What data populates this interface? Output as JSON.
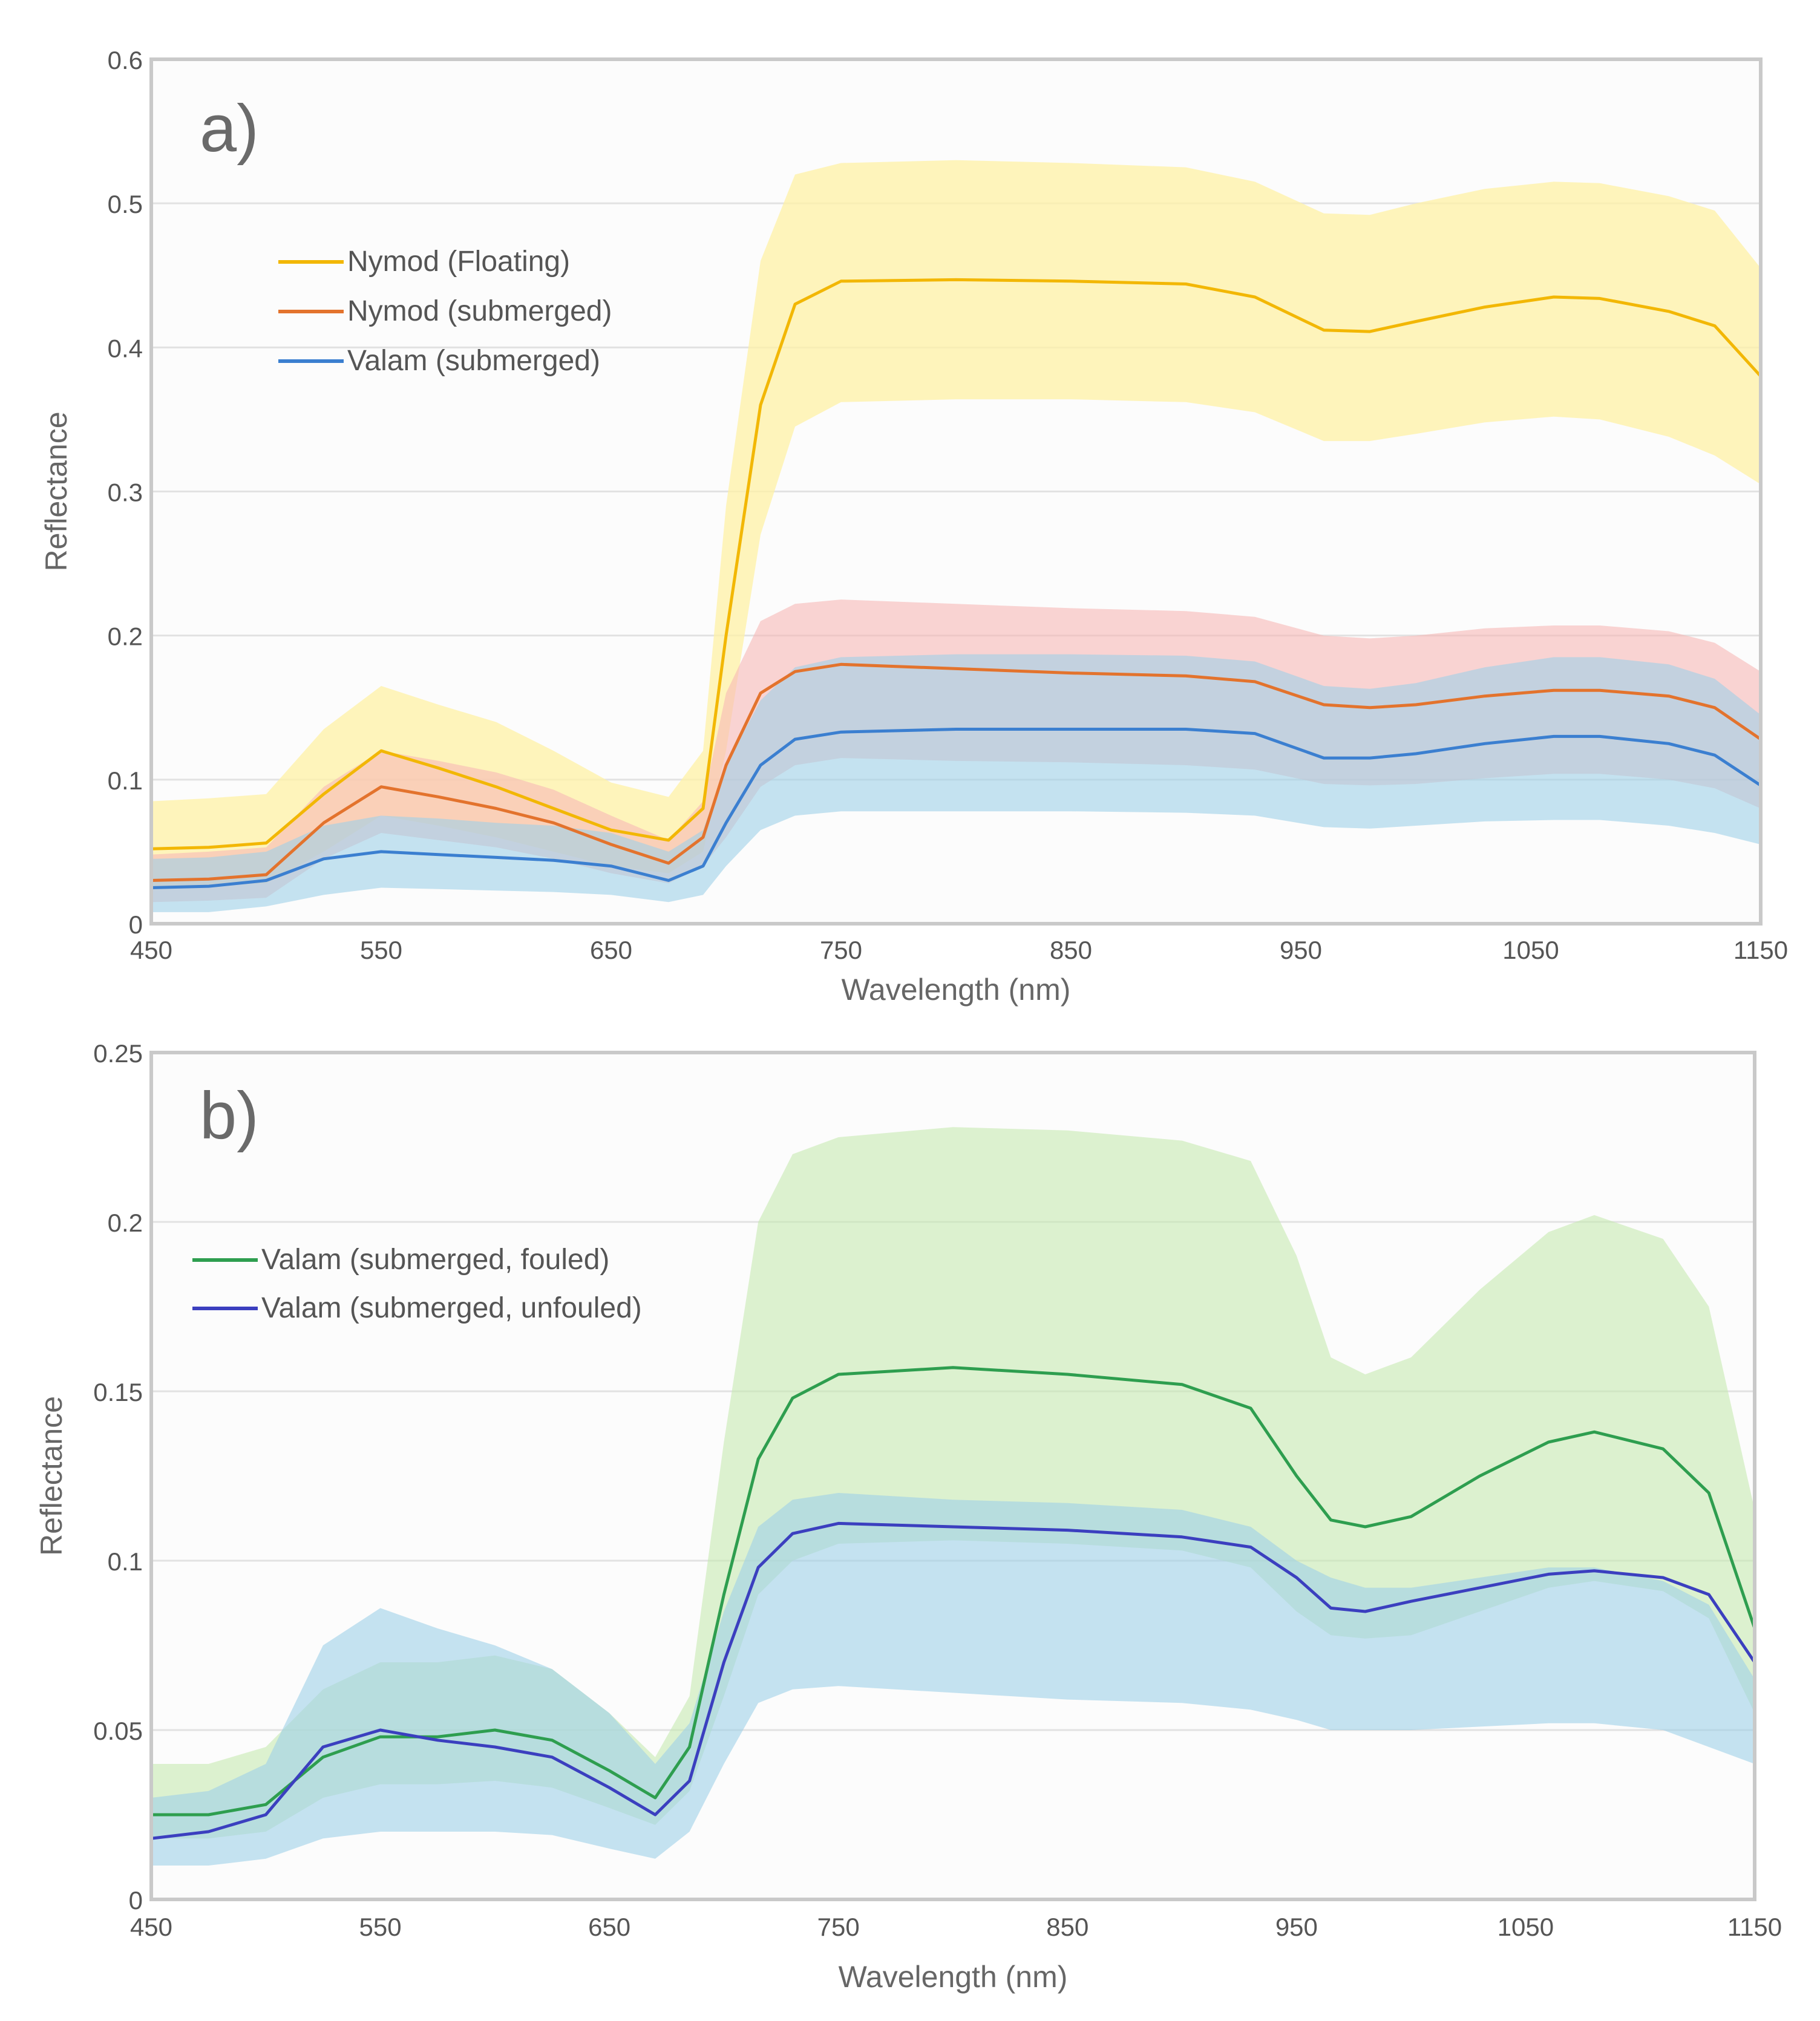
{
  "colors": {
    "page_bg": "#ffffff",
    "plot_bg": "#fcfcfc",
    "frame": "#c9c9c9",
    "grid": "#e2e2e2",
    "text": "#555555",
    "label_text": "#666666"
  },
  "chart_data": [
    {
      "type": "line",
      "panel_label": "a)",
      "xlabel": "Wavelength (nm)",
      "ylabel": "Reflectance",
      "xlim": [
        450,
        1150
      ],
      "ylim": [
        0,
        0.6
      ],
      "xticks": [
        450,
        550,
        650,
        750,
        850,
        950,
        1050,
        1150
      ],
      "xtick_labels": [
        "450",
        "550",
        "650",
        "750",
        "850",
        "950",
        "1050",
        "1150"
      ],
      "yticks": [
        0,
        0.1,
        0.2,
        0.3,
        0.4,
        0.5,
        0.6
      ],
      "ytick_labels": [
        "0",
        "0.1",
        "0.2",
        "0.3",
        "0.4",
        "0.5",
        "0.6"
      ],
      "grid": true,
      "legend_position": "upper-left",
      "x": [
        450,
        475,
        500,
        525,
        550,
        575,
        600,
        625,
        650,
        675,
        690,
        700,
        715,
        730,
        750,
        800,
        850,
        900,
        930,
        960,
        980,
        1000,
        1030,
        1060,
        1080,
        1110,
        1130,
        1150
      ],
      "series": [
        {
          "name": "Nymod (Floating)",
          "color": "#f2b705",
          "band_color": "#fff2a6",
          "values": [
            0.052,
            0.053,
            0.056,
            0.09,
            0.12,
            0.108,
            0.095,
            0.08,
            0.065,
            0.058,
            0.08,
            0.2,
            0.36,
            0.43,
            0.446,
            0.447,
            0.446,
            0.444,
            0.435,
            0.412,
            0.411,
            0.418,
            0.428,
            0.435,
            0.434,
            0.425,
            0.415,
            0.38
          ],
          "lower": [
            0.025,
            0.026,
            0.028,
            0.05,
            0.075,
            0.068,
            0.06,
            0.05,
            0.04,
            0.035,
            0.05,
            0.12,
            0.27,
            0.345,
            0.362,
            0.364,
            0.364,
            0.362,
            0.355,
            0.335,
            0.335,
            0.34,
            0.348,
            0.352,
            0.35,
            0.338,
            0.325,
            0.305
          ],
          "upper": [
            0.085,
            0.087,
            0.09,
            0.135,
            0.165,
            0.152,
            0.14,
            0.12,
            0.098,
            0.088,
            0.12,
            0.29,
            0.46,
            0.52,
            0.528,
            0.53,
            0.528,
            0.525,
            0.515,
            0.493,
            0.492,
            0.5,
            0.51,
            0.515,
            0.514,
            0.505,
            0.495,
            0.455
          ]
        },
        {
          "name": "Nymod (submerged)",
          "color": "#e3732d",
          "band_color": "#f7b7b5",
          "values": [
            0.03,
            0.031,
            0.034,
            0.07,
            0.095,
            0.088,
            0.08,
            0.07,
            0.055,
            0.042,
            0.06,
            0.11,
            0.16,
            0.175,
            0.18,
            0.177,
            0.174,
            0.172,
            0.168,
            0.152,
            0.15,
            0.152,
            0.158,
            0.162,
            0.162,
            0.158,
            0.15,
            0.128
          ],
          "lower": [
            0.015,
            0.016,
            0.018,
            0.045,
            0.063,
            0.058,
            0.053,
            0.045,
            0.035,
            0.028,
            0.04,
            0.06,
            0.095,
            0.11,
            0.115,
            0.113,
            0.112,
            0.11,
            0.107,
            0.097,
            0.096,
            0.097,
            0.101,
            0.104,
            0.104,
            0.1,
            0.094,
            0.08
          ],
          "upper": [
            0.048,
            0.05,
            0.053,
            0.095,
            0.12,
            0.113,
            0.105,
            0.093,
            0.075,
            0.058,
            0.085,
            0.16,
            0.21,
            0.222,
            0.225,
            0.222,
            0.219,
            0.217,
            0.213,
            0.2,
            0.198,
            0.2,
            0.205,
            0.207,
            0.207,
            0.203,
            0.195,
            0.175
          ]
        },
        {
          "name": "Valam (submerged)",
          "color": "#3b7fd0",
          "band_color": "#9fd0e8",
          "values": [
            0.025,
            0.026,
            0.03,
            0.045,
            0.05,
            0.048,
            0.046,
            0.044,
            0.04,
            0.03,
            0.04,
            0.07,
            0.11,
            0.128,
            0.133,
            0.135,
            0.135,
            0.135,
            0.132,
            0.115,
            0.115,
            0.118,
            0.125,
            0.13,
            0.13,
            0.125,
            0.117,
            0.096
          ],
          "lower": [
            0.008,
            0.008,
            0.012,
            0.02,
            0.025,
            0.024,
            0.023,
            0.022,
            0.02,
            0.015,
            0.02,
            0.04,
            0.065,
            0.075,
            0.078,
            0.078,
            0.078,
            0.077,
            0.075,
            0.067,
            0.066,
            0.068,
            0.071,
            0.072,
            0.072,
            0.068,
            0.063,
            0.055
          ],
          "upper": [
            0.045,
            0.046,
            0.05,
            0.068,
            0.075,
            0.073,
            0.07,
            0.068,
            0.063,
            0.05,
            0.065,
            0.11,
            0.155,
            0.178,
            0.185,
            0.187,
            0.187,
            0.186,
            0.182,
            0.165,
            0.163,
            0.167,
            0.178,
            0.185,
            0.185,
            0.18,
            0.17,
            0.145
          ]
        }
      ]
    },
    {
      "type": "line",
      "panel_label": "b)",
      "xlabel": "Wavelength (nm)",
      "ylabel": "Reflectance",
      "xlim": [
        450,
        1150
      ],
      "ylim": [
        0,
        0.25
      ],
      "xticks": [
        450,
        550,
        650,
        750,
        850,
        950,
        1050,
        1150
      ],
      "xtick_labels": [
        "450",
        "550",
        "650",
        "750",
        "850",
        "950",
        "1050",
        "1150"
      ],
      "yticks": [
        0,
        0.05,
        0.1,
        0.15,
        0.2,
        0.25
      ],
      "ytick_labels": [
        "0",
        "0.05",
        "0.1",
        "0.15",
        "0.2",
        "0.25"
      ],
      "grid": true,
      "legend_position": "upper-left",
      "x": [
        450,
        475,
        500,
        525,
        550,
        575,
        600,
        625,
        650,
        670,
        685,
        700,
        715,
        730,
        750,
        800,
        850,
        900,
        930,
        950,
        965,
        980,
        1000,
        1030,
        1060,
        1080,
        1110,
        1130,
        1150
      ],
      "series": [
        {
          "name": "Valam (submerged, fouled)",
          "color": "#2e9e4f",
          "band_color": "#c6eab0",
          "values": [
            0.025,
            0.025,
            0.028,
            0.042,
            0.048,
            0.048,
            0.05,
            0.047,
            0.038,
            0.03,
            0.045,
            0.09,
            0.13,
            0.148,
            0.155,
            0.157,
            0.155,
            0.152,
            0.145,
            0.125,
            0.112,
            0.11,
            0.113,
            0.125,
            0.135,
            0.138,
            0.133,
            0.12,
            0.08
          ],
          "lower": [
            0.018,
            0.018,
            0.02,
            0.03,
            0.034,
            0.034,
            0.035,
            0.033,
            0.027,
            0.022,
            0.032,
            0.06,
            0.09,
            0.1,
            0.105,
            0.106,
            0.105,
            0.103,
            0.098,
            0.085,
            0.078,
            0.077,
            0.078,
            0.085,
            0.092,
            0.094,
            0.091,
            0.083,
            0.055
          ],
          "upper": [
            0.04,
            0.04,
            0.045,
            0.062,
            0.07,
            0.07,
            0.072,
            0.068,
            0.055,
            0.042,
            0.06,
            0.135,
            0.2,
            0.22,
            0.225,
            0.228,
            0.227,
            0.224,
            0.218,
            0.19,
            0.16,
            0.155,
            0.16,
            0.18,
            0.197,
            0.202,
            0.195,
            0.175,
            0.115
          ]
        },
        {
          "name": "Valam (submerged, unfouled)",
          "color": "#3b3fbf",
          "band_color": "#9fd0e8",
          "values": [
            0.018,
            0.02,
            0.025,
            0.045,
            0.05,
            0.047,
            0.045,
            0.042,
            0.033,
            0.025,
            0.035,
            0.07,
            0.098,
            0.108,
            0.111,
            0.11,
            0.109,
            0.107,
            0.104,
            0.095,
            0.086,
            0.085,
            0.088,
            0.092,
            0.096,
            0.097,
            0.095,
            0.09,
            0.07
          ],
          "lower": [
            0.01,
            0.01,
            0.012,
            0.018,
            0.02,
            0.02,
            0.02,
            0.019,
            0.015,
            0.012,
            0.02,
            0.04,
            0.058,
            0.062,
            0.063,
            0.061,
            0.059,
            0.058,
            0.056,
            0.053,
            0.05,
            0.05,
            0.05,
            0.051,
            0.052,
            0.052,
            0.05,
            0.045,
            0.04
          ],
          "upper": [
            0.03,
            0.032,
            0.04,
            0.075,
            0.086,
            0.08,
            0.075,
            0.068,
            0.055,
            0.04,
            0.052,
            0.085,
            0.11,
            0.118,
            0.12,
            0.118,
            0.117,
            0.115,
            0.11,
            0.1,
            0.095,
            0.092,
            0.092,
            0.095,
            0.098,
            0.098,
            0.094,
            0.087,
            0.065
          ]
        }
      ]
    }
  ]
}
